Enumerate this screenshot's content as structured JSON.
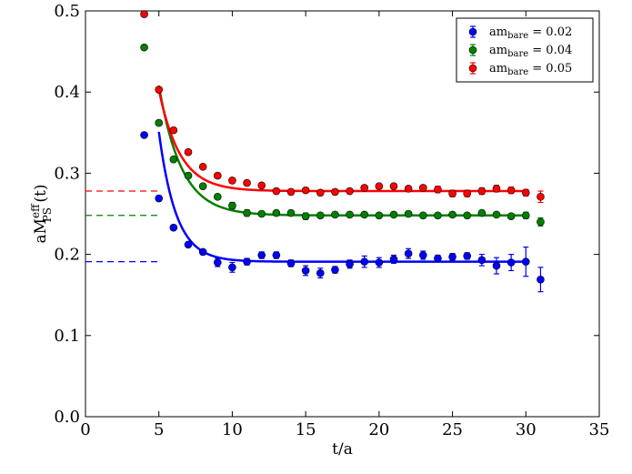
{
  "chart_data": {
    "type": "scatter",
    "title": "",
    "xlabel": "t/a",
    "ylabel": {
      "base": "aM",
      "superscript": "eff",
      "subscript": "PS",
      "suffix": " (t)"
    },
    "xlim": [
      0,
      35
    ],
    "ylim": [
      0.0,
      0.5
    ],
    "xticks": [
      0,
      5,
      10,
      15,
      20,
      25,
      30,
      35
    ],
    "yticks": [
      0.0,
      0.1,
      0.2,
      0.3,
      0.4,
      0.5
    ],
    "xtick_labels": [
      "0",
      "5",
      "10",
      "15",
      "20",
      "25",
      "30",
      "35"
    ],
    "ytick_labels": [
      "0.0",
      "0.1",
      "0.2",
      "0.3",
      "0.4",
      "0.5"
    ],
    "legend_position": "top-right",
    "series": [
      {
        "name": "0.02",
        "legend_prefix": "am",
        "legend_sub": "bare",
        "legend_suffix": " = 0.02",
        "color": "#0000ff",
        "plateau": 0.191,
        "fit": {
          "amp": 0.16,
          "decay": 0.85,
          "t_start": 5,
          "t_end": 30
        },
        "x": [
          4,
          5,
          6,
          7,
          8,
          9,
          10,
          11,
          12,
          13,
          14,
          15,
          16,
          17,
          18,
          19,
          20,
          21,
          22,
          23,
          24,
          25,
          26,
          27,
          28,
          29,
          30,
          31
        ],
        "y": [
          0.347,
          0.269,
          0.233,
          0.212,
          0.203,
          0.19,
          0.184,
          0.191,
          0.199,
          0.199,
          0.189,
          0.18,
          0.177,
          0.181,
          0.188,
          0.191,
          0.19,
          0.194,
          0.201,
          0.199,
          0.195,
          0.197,
          0.198,
          0.193,
          0.186,
          0.19,
          0.191,
          0.169
        ],
        "err": [
          0.002,
          0.003,
          0.003,
          0.003,
          0.003,
          0.005,
          0.006,
          0.004,
          0.004,
          0.004,
          0.004,
          0.006,
          0.006,
          0.004,
          0.005,
          0.007,
          0.006,
          0.005,
          0.006,
          0.005,
          0.004,
          0.004,
          0.004,
          0.007,
          0.01,
          0.01,
          0.018,
          0.015
        ]
      },
      {
        "name": "0.04",
        "legend_prefix": "am",
        "legend_sub": "bare",
        "legend_suffix": " = 0.04",
        "color": "#008000",
        "plateau": 0.248,
        "fit": {
          "amp": 0.16,
          "decay": 0.65,
          "t_start": 5,
          "t_end": 30
        },
        "x": [
          4,
          5,
          6,
          7,
          8,
          9,
          10,
          11,
          12,
          13,
          14,
          15,
          16,
          17,
          18,
          19,
          20,
          21,
          22,
          23,
          24,
          25,
          26,
          27,
          28,
          29,
          30,
          31
        ],
        "y": [
          0.455,
          0.362,
          0.317,
          0.297,
          0.284,
          0.271,
          0.26,
          0.251,
          0.25,
          0.251,
          0.251,
          0.247,
          0.248,
          0.249,
          0.249,
          0.249,
          0.248,
          0.249,
          0.25,
          0.248,
          0.248,
          0.249,
          0.248,
          0.251,
          0.249,
          0.247,
          0.248,
          0.24
        ],
        "err": [
          0.002,
          0.003,
          0.003,
          0.003,
          0.003,
          0.003,
          0.004,
          0.004,
          0.003,
          0.003,
          0.003,
          0.004,
          0.003,
          0.003,
          0.003,
          0.003,
          0.003,
          0.003,
          0.003,
          0.003,
          0.003,
          0.003,
          0.003,
          0.003,
          0.003,
          0.003,
          0.004,
          0.005
        ]
      },
      {
        "name": "0.05",
        "legend_prefix": "am",
        "legend_sub": "bare",
        "legend_suffix": " = 0.05",
        "color": "#ff0000",
        "plateau": 0.278,
        "fit": {
          "amp": 0.125,
          "decay": 0.7,
          "t_start": 5,
          "t_end": 30
        },
        "x": [
          4,
          5,
          6,
          7,
          8,
          9,
          10,
          11,
          12,
          13,
          14,
          15,
          16,
          17,
          18,
          19,
          20,
          21,
          22,
          23,
          24,
          25,
          26,
          27,
          28,
          29,
          30,
          31
        ],
        "y": [
          0.496,
          0.403,
          0.353,
          0.326,
          0.308,
          0.297,
          0.291,
          0.288,
          0.285,
          0.278,
          0.277,
          0.279,
          0.276,
          0.277,
          0.278,
          0.282,
          0.284,
          0.284,
          0.281,
          0.282,
          0.28,
          0.275,
          0.275,
          0.278,
          0.281,
          0.279,
          0.276,
          0.271
        ],
        "err": [
          0.002,
          0.003,
          0.003,
          0.003,
          0.003,
          0.003,
          0.003,
          0.003,
          0.003,
          0.003,
          0.003,
          0.003,
          0.003,
          0.003,
          0.003,
          0.003,
          0.003,
          0.003,
          0.003,
          0.003,
          0.004,
          0.004,
          0.004,
          0.004,
          0.004,
          0.004,
          0.004,
          0.007
        ]
      }
    ]
  }
}
